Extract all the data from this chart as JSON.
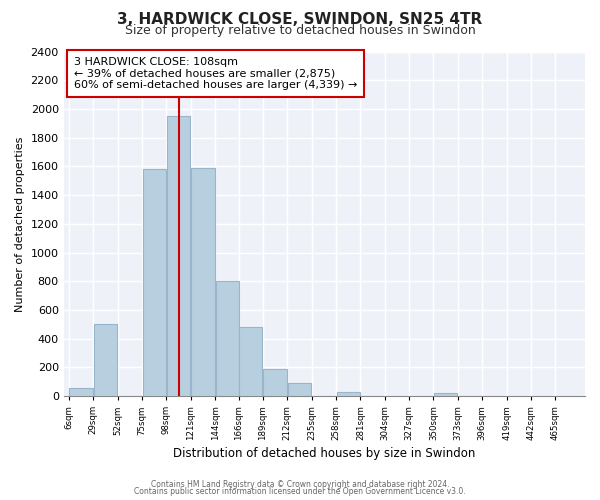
{
  "title": "3, HARDWICK CLOSE, SWINDON, SN25 4TR",
  "subtitle": "Size of property relative to detached houses in Swindon",
  "xlabel": "Distribution of detached houses by size in Swindon",
  "ylabel": "Number of detached properties",
  "bar_color": "#b8cfe0",
  "bar_edge_color": "#9ab4cc",
  "vline_x": 109.5,
  "vline_color": "#cc0000",
  "annotation_title": "3 HARDWICK CLOSE: 108sqm",
  "annotation_line1": "← 39% of detached houses are smaller (2,875)",
  "annotation_line2": "60% of semi-detached houses are larger (4,339) →",
  "annotation_box_color": "white",
  "annotation_box_edge": "#cc0000",
  "bins_left_edges": [
    6,
    29,
    52,
    75,
    98,
    121,
    144,
    166,
    189,
    212,
    235,
    258,
    281,
    304,
    327,
    350,
    373,
    396,
    419,
    442,
    465
  ],
  "bin_width": 23,
  "heights": [
    55,
    500,
    0,
    1580,
    1950,
    1590,
    800,
    480,
    190,
    90,
    0,
    30,
    0,
    0,
    0,
    20,
    0,
    0,
    0,
    0,
    0
  ],
  "tick_labels": [
    "6sqm",
    "29sqm",
    "52sqm",
    "75sqm",
    "98sqm",
    "121sqm",
    "144sqm",
    "166sqm",
    "189sqm",
    "212sqm",
    "235sqm",
    "258sqm",
    "281sqm",
    "304sqm",
    "327sqm",
    "350sqm",
    "373sqm",
    "396sqm",
    "419sqm",
    "442sqm",
    "465sqm"
  ],
  "ylim": [
    0,
    2400
  ],
  "yticks": [
    0,
    200,
    400,
    600,
    800,
    1000,
    1200,
    1400,
    1600,
    1800,
    2000,
    2200,
    2400
  ],
  "footnote1": "Contains HM Land Registry data © Crown copyright and database right 2024.",
  "footnote2": "Contains public sector information licensed under the Open Government Licence v3.0.",
  "plot_bg_color": "#eef2f8",
  "fig_bg_color": "#ffffff",
  "grid_color": "#ffffff"
}
